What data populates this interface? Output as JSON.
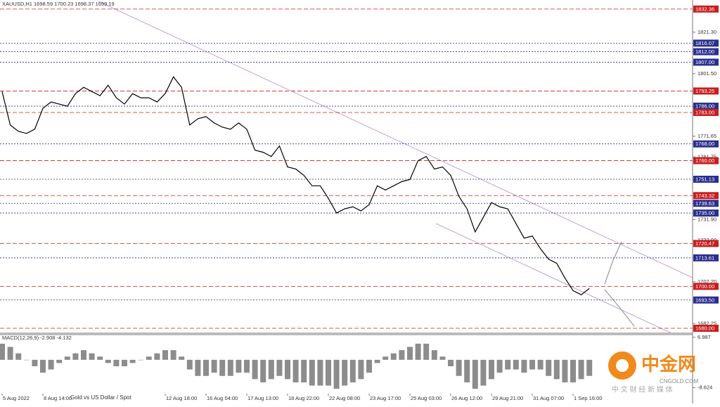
{
  "chart_data": [
    {
      "type": "line",
      "title": "XAUUSD,H1  1698.59 1700.23 1698.37 1699.19",
      "subtitle": "Gold vs US Dollar / Spot",
      "categories": [
        "5 Aug 2022",
        null,
        null,
        null,
        null,
        "8 Aug 14:00",
        null,
        null,
        null,
        null,
        null,
        null,
        null,
        null,
        null,
        null,
        null,
        null,
        null,
        null,
        "12 Aug 18:00",
        null,
        null,
        null,
        null,
        "16 Aug 04:00",
        null,
        null,
        null,
        null,
        "17 Aug 13:00",
        null,
        null,
        null,
        null,
        "18 Aug 22:00",
        null,
        null,
        null,
        null,
        "22 Aug 08:00",
        null,
        null,
        null,
        null,
        "23 Aug 17:00",
        null,
        null,
        null,
        null,
        "25 Aug 03:00",
        null,
        null,
        null,
        null,
        "26 Aug 12:00",
        null,
        null,
        null,
        null,
        "29 Aug 21:00",
        null,
        null,
        null,
        null,
        "31 Aug 07:00",
        null,
        null,
        null,
        null,
        "1 Sep 16:00",
        null,
        null
      ],
      "values": [
        1793,
        1777,
        1774,
        1773,
        1775,
        1785,
        1788,
        1787,
        1786,
        1792,
        1795,
        1793,
        1791,
        1796,
        1790,
        1787,
        1792,
        1790,
        1790,
        1788,
        1792,
        1800,
        1795,
        1777,
        1780,
        1781,
        1778,
        1776,
        1775,
        1778,
        1775,
        1765,
        1764,
        1762,
        1767,
        1757,
        1756,
        1753,
        1748,
        1748,
        1742,
        1735,
        1737,
        1738,
        1736,
        1739,
        1748,
        1746,
        1748,
        1750,
        1751,
        1760,
        1762,
        1756,
        1757,
        1753,
        1743,
        1737,
        1726,
        1733,
        1740,
        1738,
        1737,
        1730,
        1723,
        1724,
        1718,
        1713,
        1711,
        1704,
        1698,
        1696,
        1699
      ],
      "color": "#000000",
      "ylim": [
        1679,
        1836
      ],
      "yticks": [
        {
          "value": 1821.3,
          "label": "1821.30"
        },
        {
          "value": 1801.5,
          "label": "1801.50"
        },
        {
          "value": 1771.65,
          "label": "1771.65"
        },
        {
          "value": 1761.75,
          "label": "1761.75"
        },
        {
          "value": 1731.9,
          "label": "1731.90"
        },
        {
          "value": 1722,
          "label": "1722.00"
        },
        {
          "value": 1702.2,
          "label": "1702.20"
        },
        {
          "value": 1682.25,
          "label": "1682.25"
        }
      ],
      "levels": [
        {
          "value": 1832.36,
          "label": "1832.36",
          "color": "#c81e1e"
        },
        {
          "value": 1816.07,
          "label": "1816.07",
          "color": "#2b2f8f"
        },
        {
          "value": 1812,
          "label": "1812.00",
          "color": "#2b2f8f"
        },
        {
          "value": 1807,
          "label": "1807.00",
          "color": "#2b2f8f"
        },
        {
          "value": 1793.25,
          "label": "1793.25",
          "color": "#c81e1e"
        },
        {
          "value": 1786,
          "label": "1786.00",
          "color": "#2b2f8f"
        },
        {
          "value": 1783,
          "label": "1783.00",
          "color": "#c81e1e"
        },
        {
          "value": 1768,
          "label": "1768.00",
          "color": "#2b2f8f"
        },
        {
          "value": 1760,
          "label": "1760.00",
          "color": "#c81e1e"
        },
        {
          "value": 1751.13,
          "label": "1751.13",
          "color": "#2b2f8f"
        },
        {
          "value": 1743.32,
          "label": "1743.32",
          "color": "#c81e1e"
        },
        {
          "value": 1739.63,
          "label": "1739.63",
          "color": "#2b2f8f"
        },
        {
          "value": 1735,
          "label": "1735.00",
          "color": "#2b2f8f"
        },
        {
          "value": 1720.47,
          "label": "1720.47",
          "color": "#c81e1e"
        },
        {
          "value": 1713.61,
          "label": "1713.61",
          "color": "#2b2f8f"
        },
        {
          "value": 1700,
          "label": "1700.00",
          "color": "#c81e1e"
        },
        {
          "value": 1693.5,
          "label": "1693.50",
          "color": "#2b2f8f"
        },
        {
          "value": 1680,
          "label": "1680.00",
          "color": "#c81e1e"
        }
      ]
    },
    {
      "type": "bar",
      "title": "MACD(12,26,9) -2.908 -4.132",
      "values": [
        5,
        4,
        2,
        0,
        -2,
        -4,
        -3,
        -1,
        1,
        2,
        3,
        2,
        1,
        -1,
        -2,
        -2,
        -1,
        0,
        1,
        2,
        3,
        3,
        1,
        -3,
        -5,
        -5,
        -4,
        -5,
        -5,
        -4,
        -4,
        -6,
        -7,
        -6,
        -5,
        -6,
        -7,
        -7,
        -8,
        -8,
        -8,
        -9,
        -8,
        -7,
        -6,
        -4,
        -1,
        1,
        2,
        3,
        4,
        5,
        5,
        3,
        1,
        -2,
        -5,
        -7,
        -9,
        -8,
        -6,
        -4,
        -3,
        -3,
        -4,
        -3,
        -3,
        -5,
        -6,
        -7,
        -7,
        -6,
        -5
      ],
      "color": "#8c8c8c",
      "ylim": [
        -10.5,
        7.6
      ],
      "yticks": [
        6.987,
        -8.624
      ]
    }
  ],
  "watermark": {
    "brand": "中金网",
    "site": "CNGOLD.COM",
    "tagline": "中 文 财 经 新 媒 体"
  }
}
